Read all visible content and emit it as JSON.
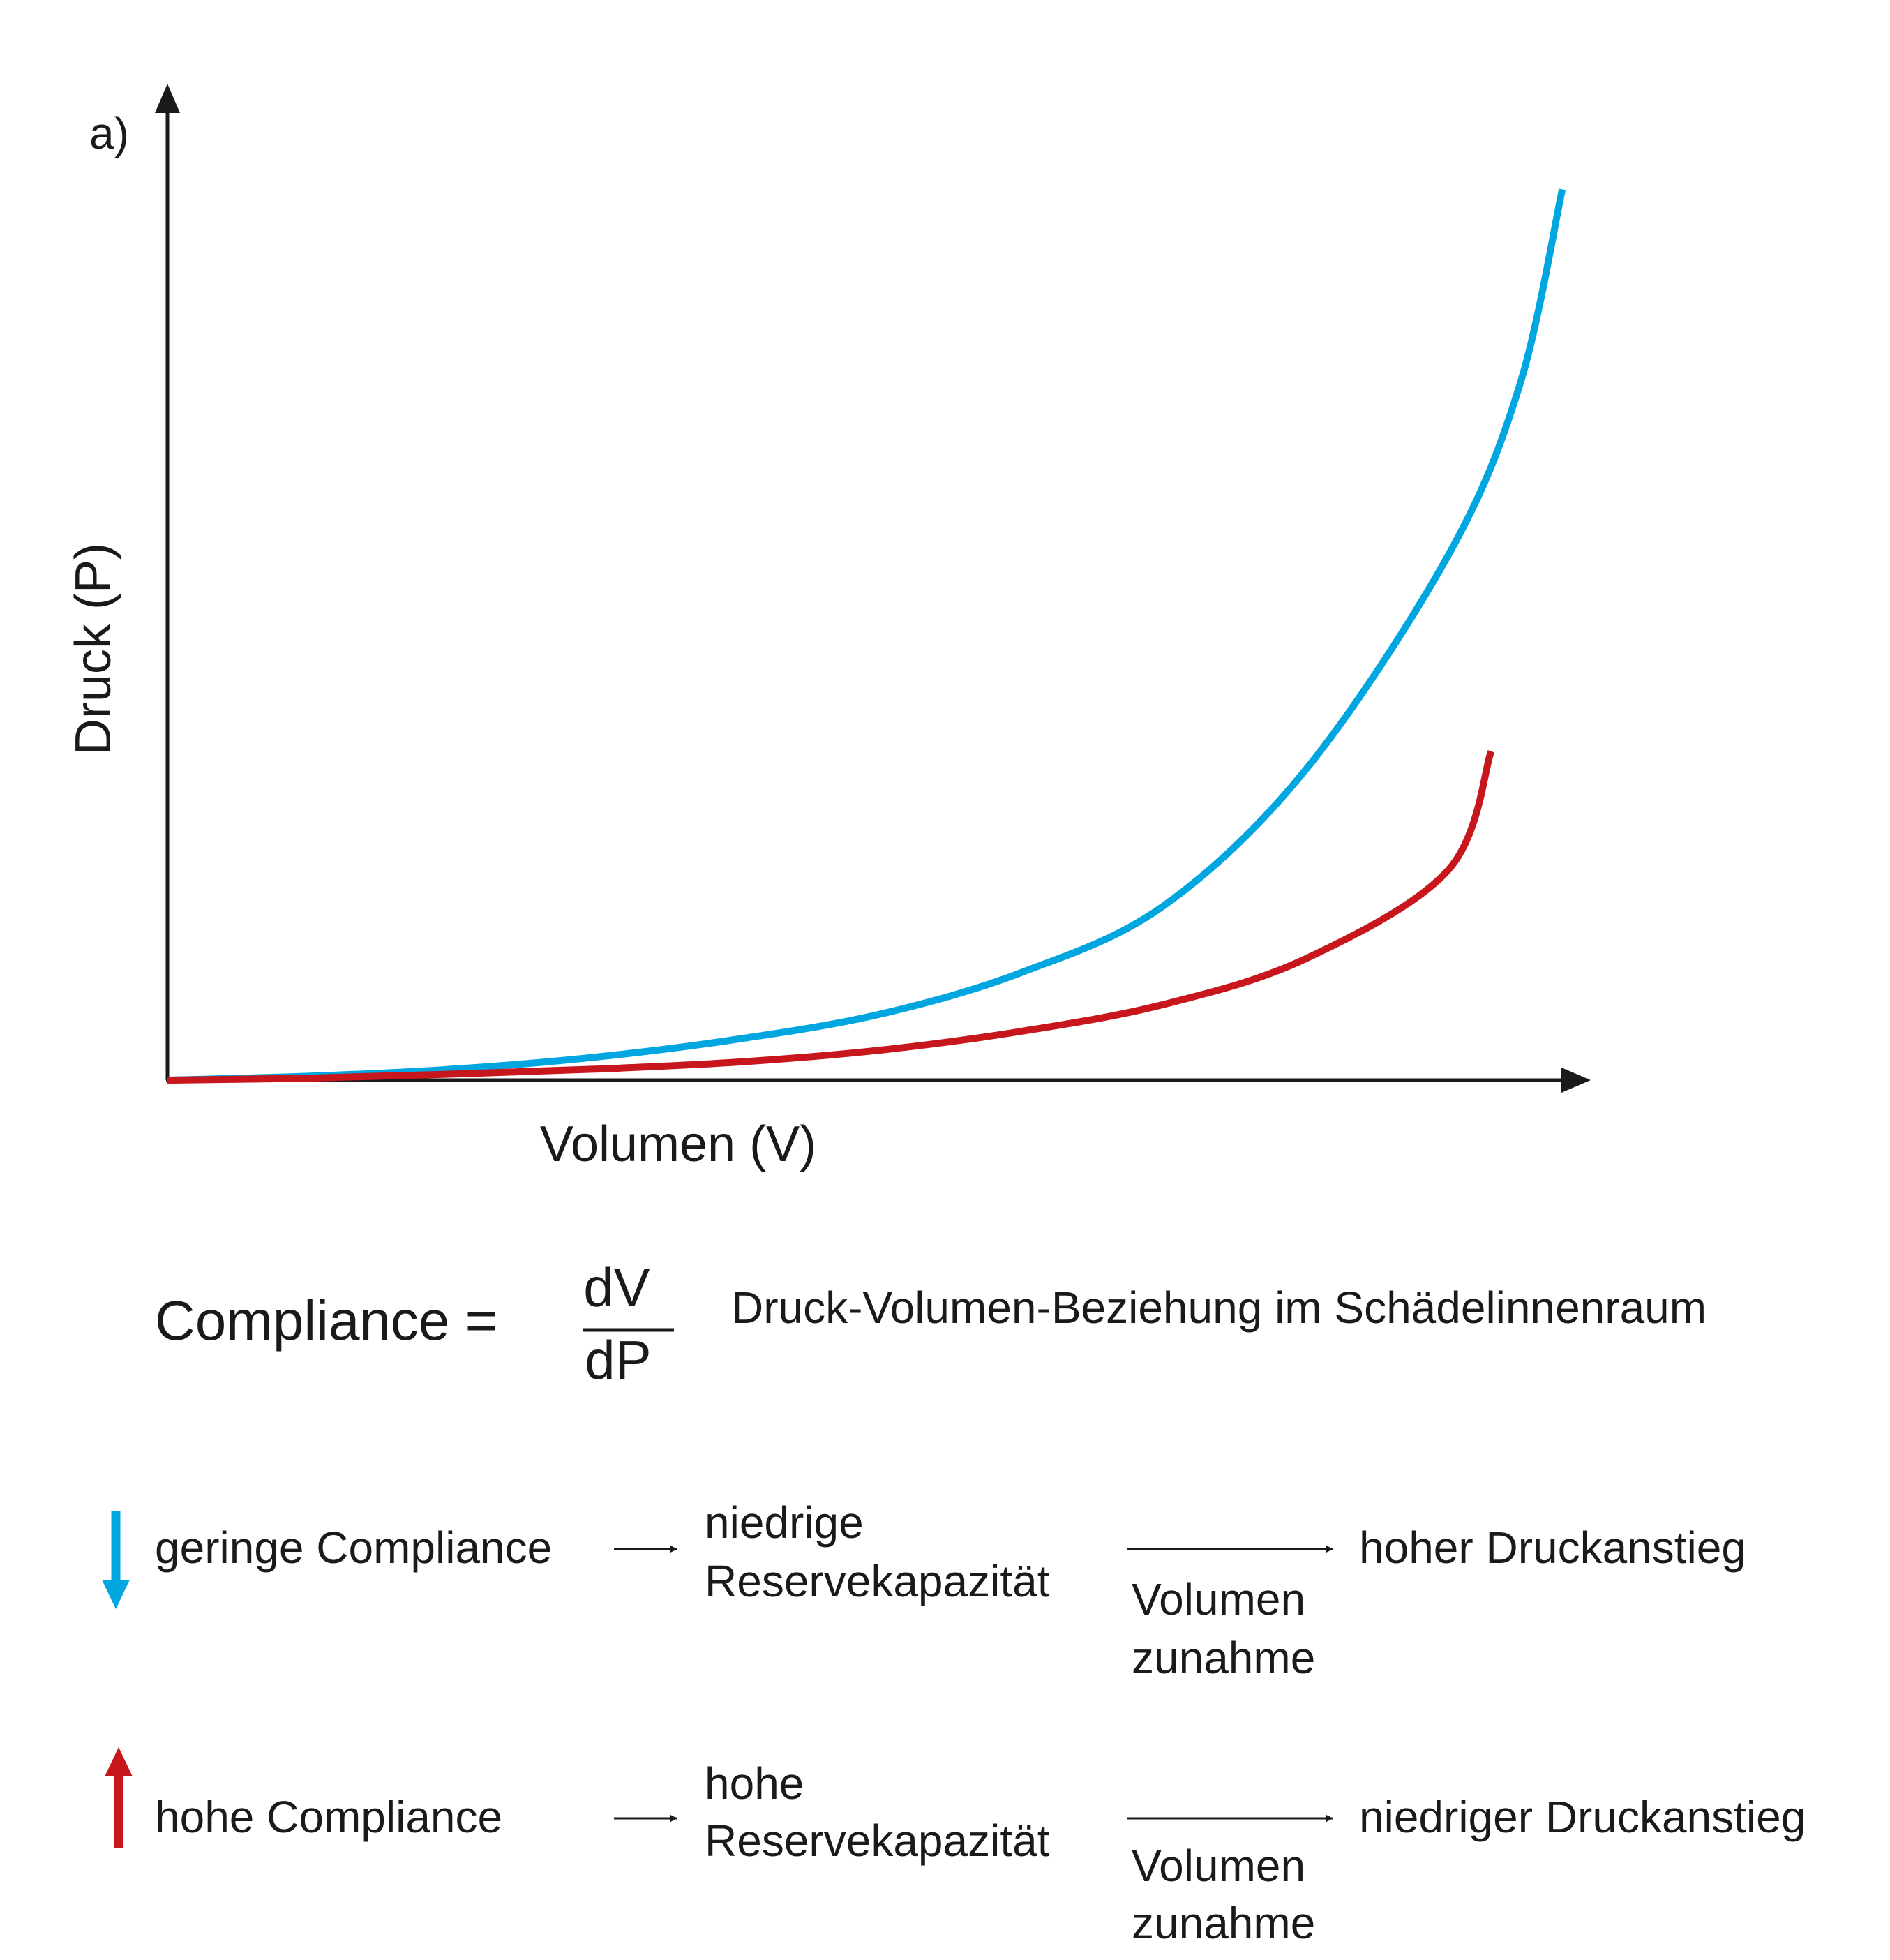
{
  "panel_label": "a)",
  "chart_data": {
    "type": "line",
    "ylabel": "Druck (P)",
    "xlabel": "Volumen (V)",
    "grid": false,
    "series": [
      {
        "color": "#00a6e0",
        "points": [
          [
            0,
            0.0
          ],
          [
            0.1,
            0.4
          ],
          [
            0.2,
            1.1
          ],
          [
            0.3,
            2.3
          ],
          [
            0.4,
            4.1
          ],
          [
            0.5,
            6.6
          ],
          [
            0.6,
            10.8
          ],
          [
            0.7,
            17.5
          ],
          [
            0.8,
            31.2
          ],
          [
            0.9,
            52.7
          ],
          [
            0.95,
            69.7
          ],
          [
            0.98,
            89.4
          ]
        ]
      },
      {
        "color": "#c8161d",
        "points": [
          [
            0,
            0.0
          ],
          [
            0.1,
            0.2
          ],
          [
            0.2,
            0.6
          ],
          [
            0.3,
            1.1
          ],
          [
            0.4,
            1.8
          ],
          [
            0.5,
            3.0
          ],
          [
            0.6,
            4.9
          ],
          [
            0.7,
            7.6
          ],
          [
            0.8,
            12.2
          ],
          [
            0.9,
            21.1
          ],
          [
            0.93,
            33.0
          ]
        ]
      }
    ]
  },
  "formula": {
    "lhs": "Compliance =",
    "numerator": "dV",
    "denominator": "dP",
    "caption": "Druck-Volumen-Beziehung im Schädelinnenraum"
  },
  "rows": [
    {
      "arrow_color": "#00a6e0",
      "arrow_direction": "down",
      "compliance": "geringe Compliance",
      "reserve_line1": "niedrige",
      "reserve_line2": "Reservekapazität",
      "volume_line1": "Volumen",
      "volume_line2": "zunahme",
      "result": "hoher Druckanstieg"
    },
    {
      "arrow_color": "#c8161d",
      "arrow_direction": "up",
      "compliance": "hohe Compliance",
      "reserve_line1": "hohe",
      "reserve_line2": "Reservekapazität",
      "volume_line1": "Volumen",
      "volume_line2": "zunahme",
      "result": "niedriger Druckanstieg"
    }
  ]
}
